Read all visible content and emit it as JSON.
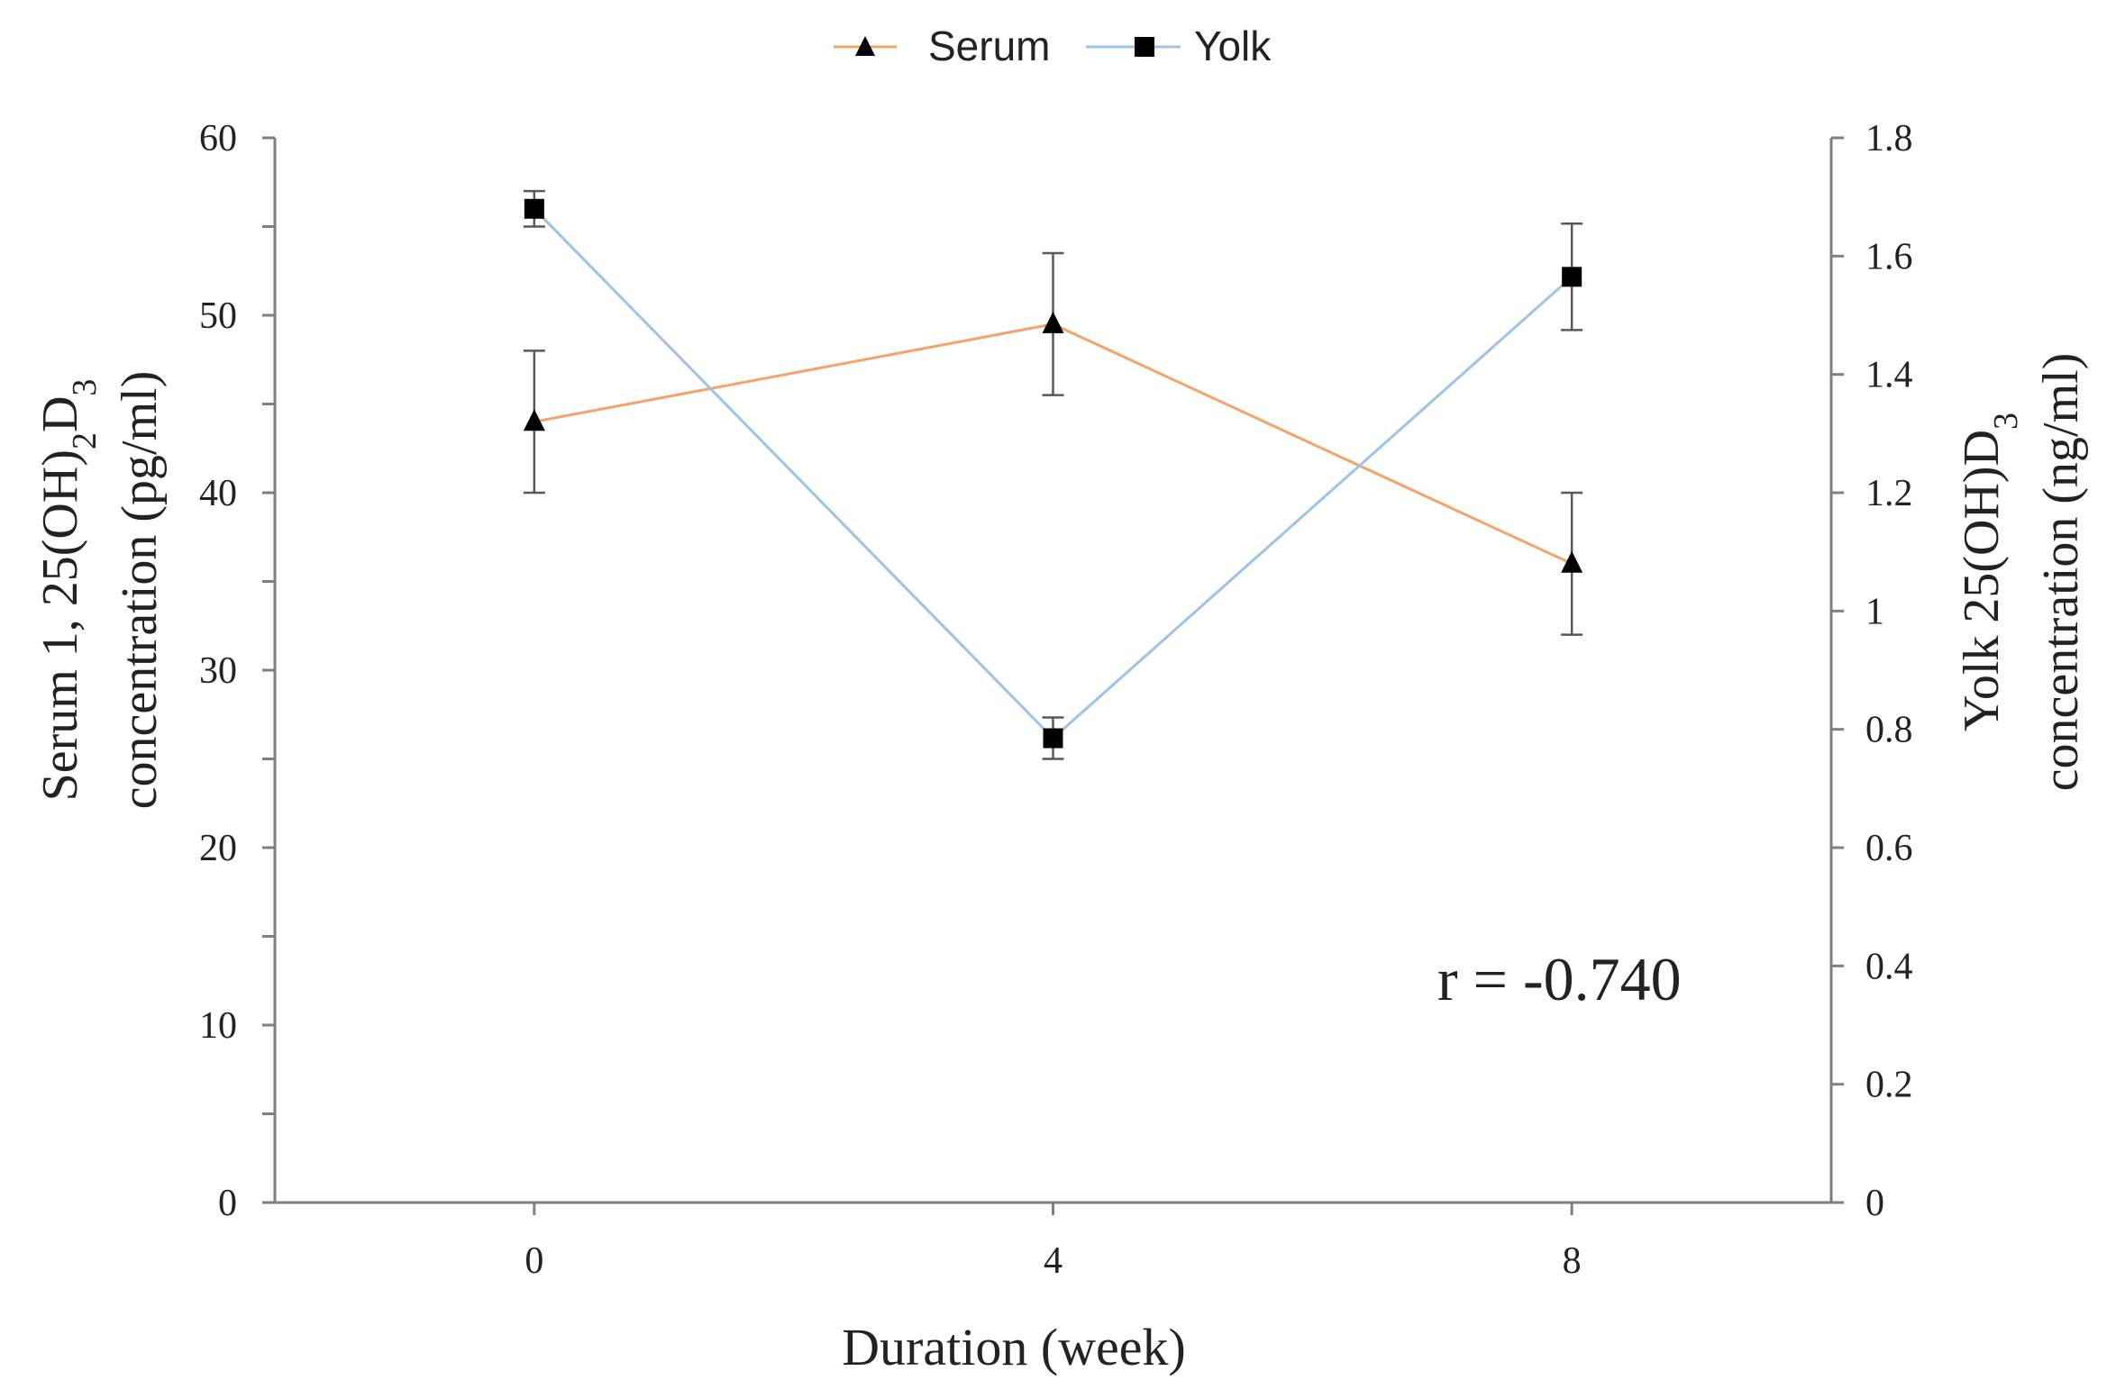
{
  "chart_data": {
    "type": "line",
    "legend": {
      "placement": "top-center",
      "items": [
        {
          "name": "Serum",
          "marker": "triangle",
          "color": "#f4a46a"
        },
        {
          "name": "Yolk",
          "marker": "square",
          "color": "#9dc3e6"
        }
      ]
    },
    "x": [
      0,
      4,
      8
    ],
    "x_tick_labels": [
      "0",
      "4",
      "8"
    ],
    "xlabel": "Duration (week)",
    "xlim": [
      -2,
      10
    ],
    "left_axis": {
      "label_line1_parts": [
        "Serum 1, 25(OH)",
        "2",
        "D",
        "3"
      ],
      "label_line2": "concentration  (pg/ml)",
      "ylim": [
        0,
        60
      ],
      "tick_values": [
        0,
        10,
        20,
        30,
        40,
        50,
        60
      ],
      "tick_labels": [
        "0",
        "10",
        "20",
        "30",
        "40",
        "50",
        "60"
      ],
      "minor_step": 5
    },
    "right_axis": {
      "label_line1_parts": [
        "Yolk 25(OH)D",
        "3"
      ],
      "label_line2": "concentration  (ng/ml)",
      "ylim": [
        0,
        1.8
      ],
      "tick_values": [
        0,
        0.2,
        0.4,
        0.6,
        0.8,
        1.0,
        1.2,
        1.4,
        1.6,
        1.8
      ],
      "tick_labels": [
        "0",
        "0.2",
        "0.4",
        "0.6",
        "0.8",
        "1",
        "1.2",
        "1.4",
        "1.6",
        "1.8"
      ]
    },
    "series": [
      {
        "name": "Serum",
        "axis": "left",
        "marker": "triangle",
        "color": "#f4a46a",
        "values": [
          44,
          49.5,
          36
        ],
        "errors": [
          4,
          4,
          4
        ]
      },
      {
        "name": "Yolk",
        "axis": "right",
        "marker": "square",
        "color": "#9dc3e6",
        "values": [
          1.68,
          0.785,
          1.565
        ],
        "errors": [
          0.03,
          0.035,
          0.09
        ]
      }
    ],
    "annotation": "r = -0.740"
  }
}
